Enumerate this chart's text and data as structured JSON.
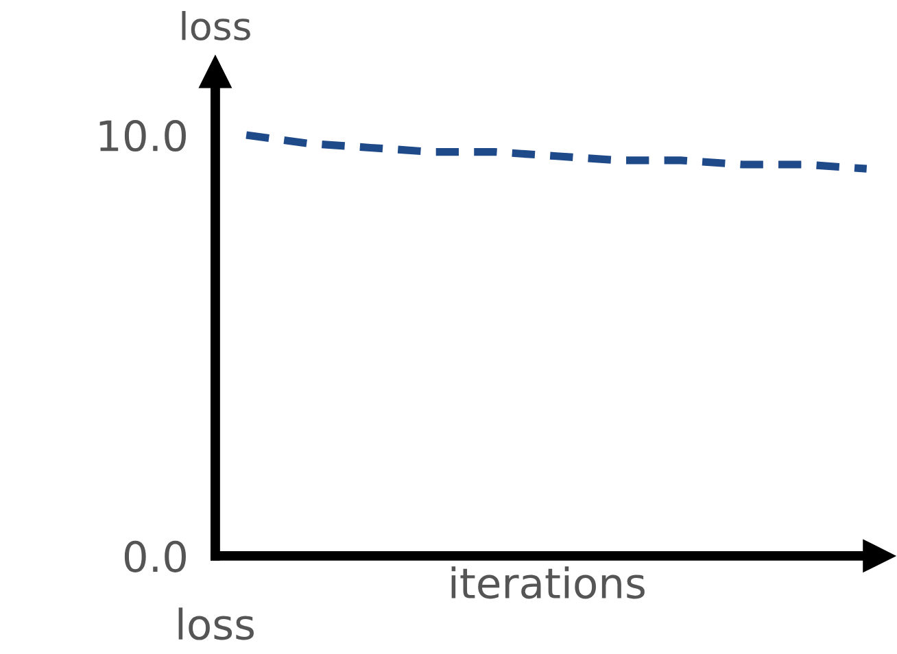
{
  "chart_data": {
    "type": "line",
    "ylabel": "loss",
    "xlabel": "iterations",
    "annotations": [
      "loss"
    ],
    "categories": [
      null,
      null,
      null,
      null,
      null,
      null,
      null,
      null,
      null,
      null,
      null
    ],
    "series": [
      {
        "color": "#1f4a8a",
        "values": [
          10.0,
          9.8,
          9.7,
          9.6,
          9.6,
          9.5,
          9.4,
          9.4,
          9.3,
          9.3,
          9.2
        ]
      }
    ],
    "ylim": [
      0,
      11.5
    ],
    "yticks": [
      {
        "value": 0,
        "label": "0.0"
      },
      {
        "value": 10,
        "label": "10.0"
      }
    ],
    "line_style": "dashed",
    "marker": "none",
    "grid": false,
    "legend": false
  }
}
